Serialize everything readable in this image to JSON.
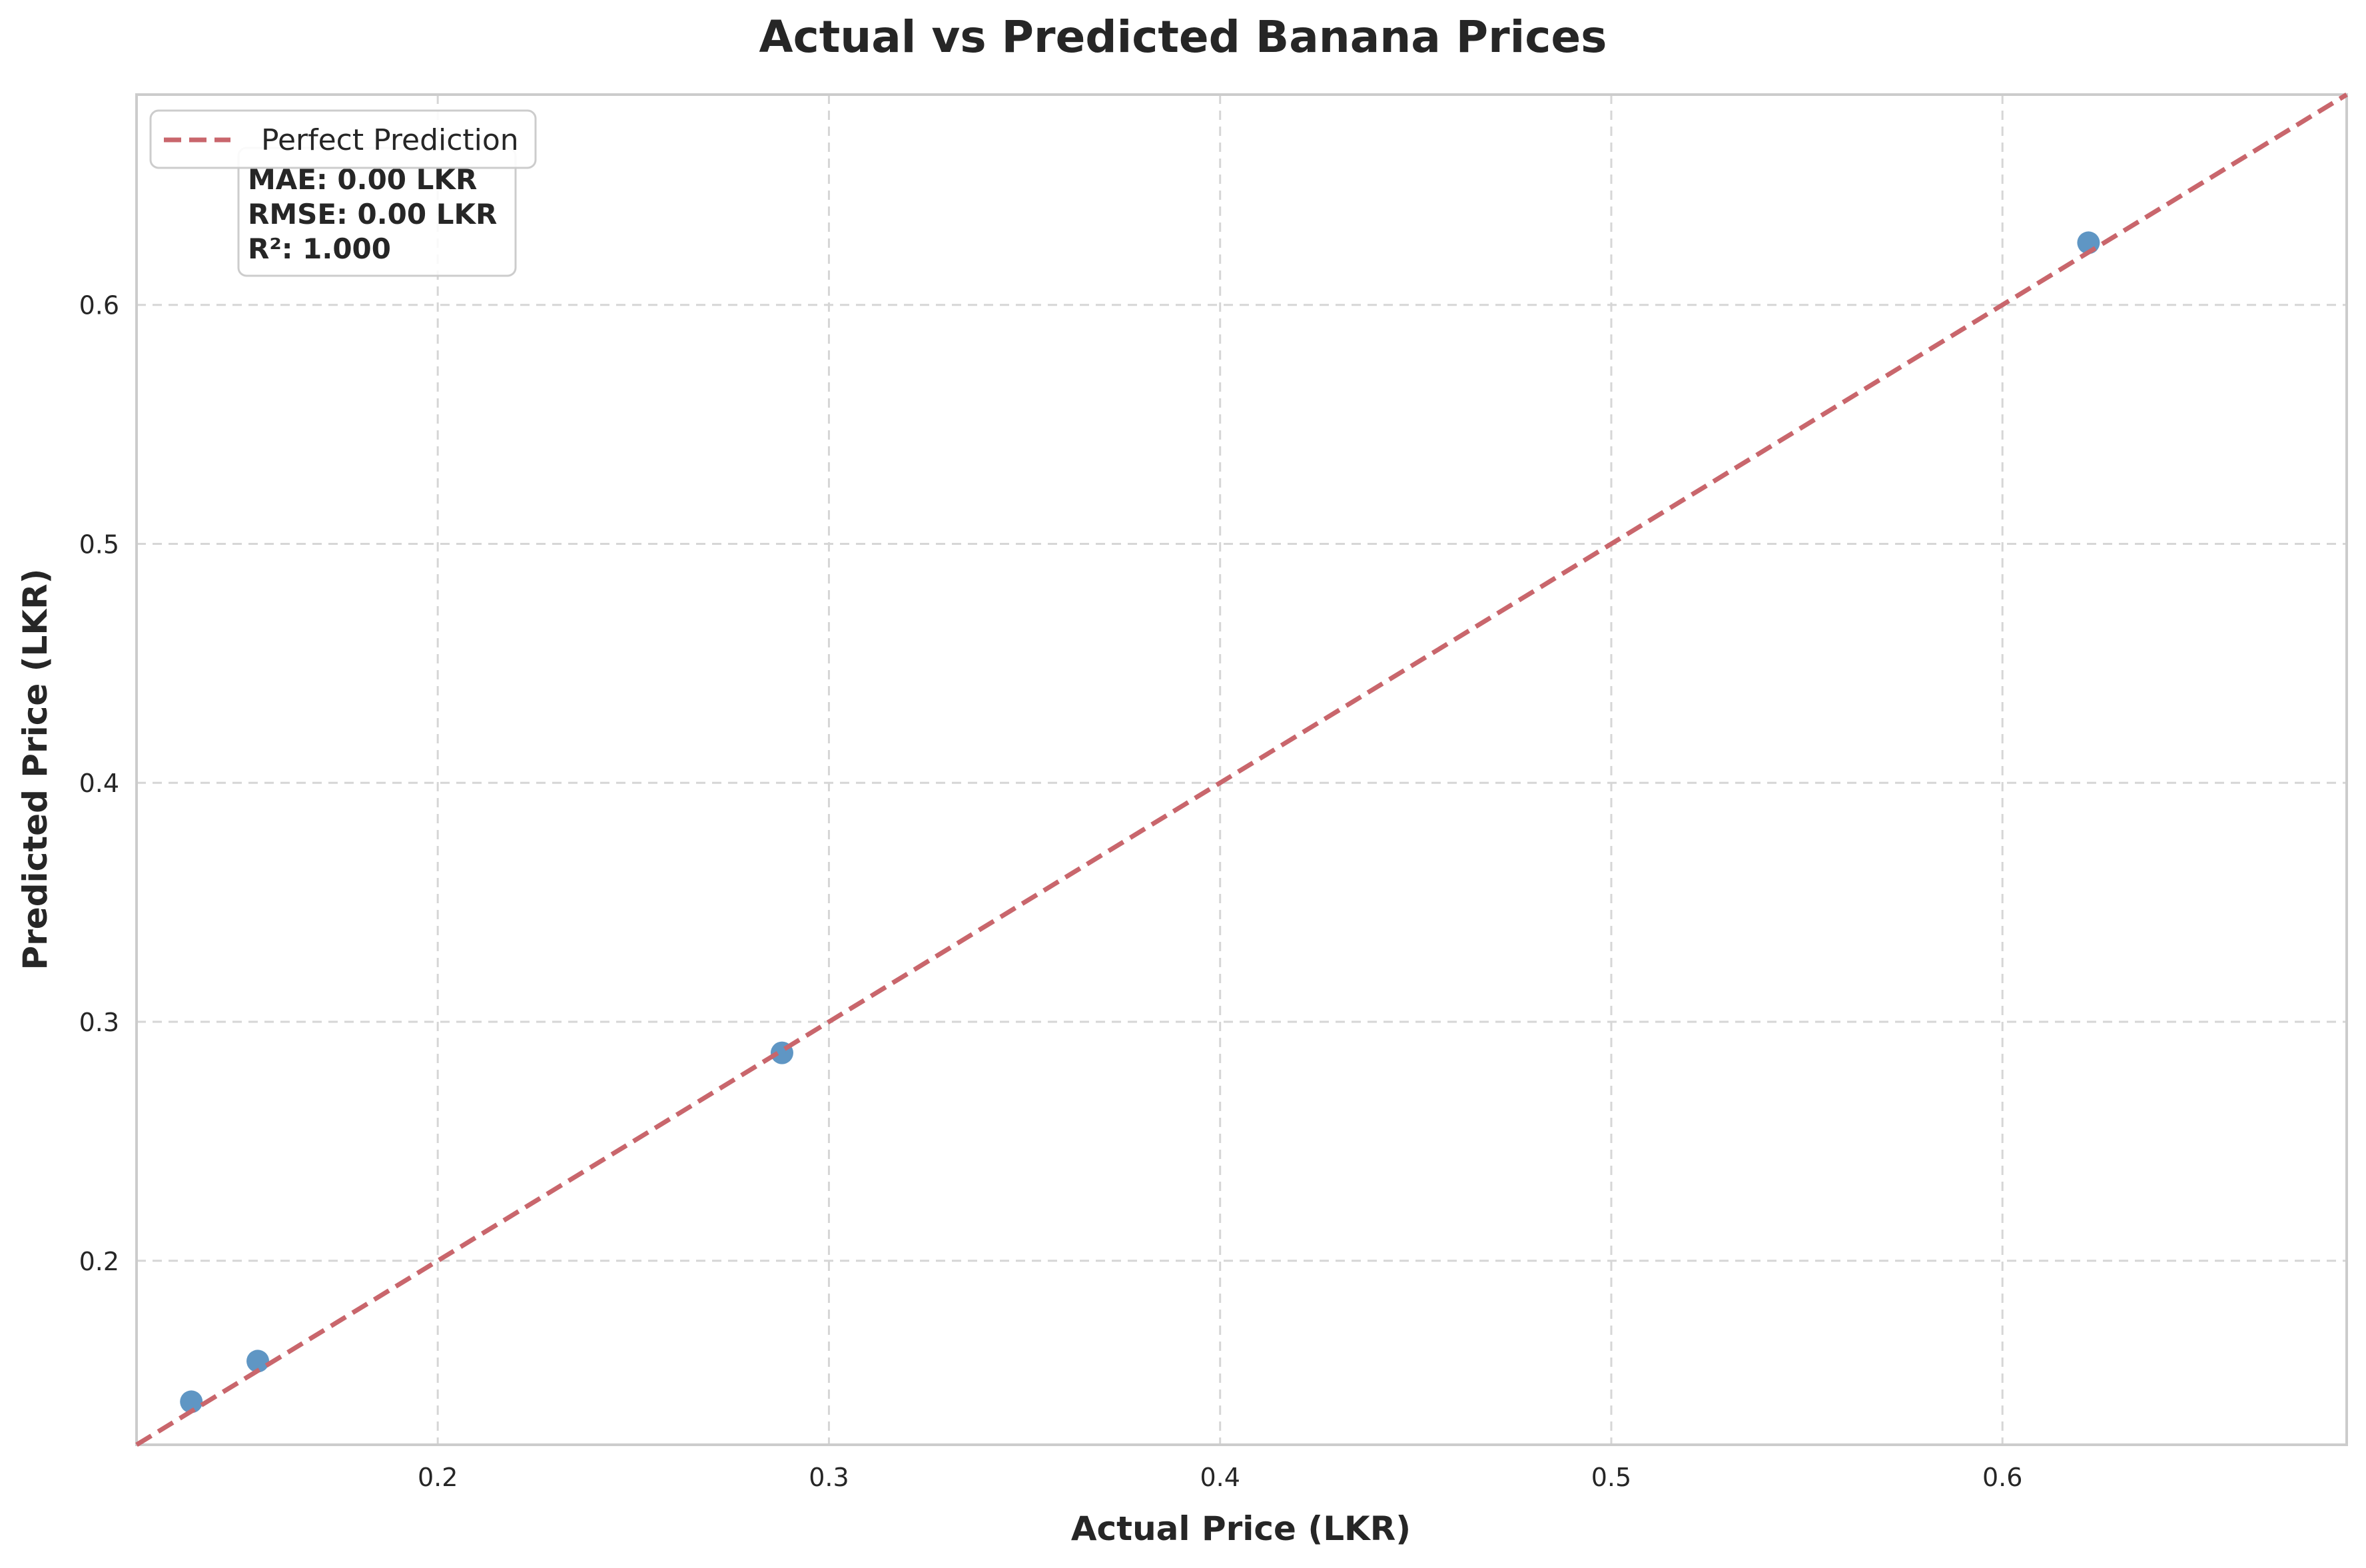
{
  "chart_data": {
    "type": "scatter",
    "title": "Actual vs Predicted Banana Prices",
    "xlabel": "Actual Price (LKR)",
    "ylabel": "Predicted Price (LKR)",
    "xlim": [
      0.123,
      0.688
    ],
    "ylim": [
      0.123,
      0.688
    ],
    "xticks": [
      0.2,
      0.3,
      0.4,
      0.5,
      0.6
    ],
    "yticks": [
      0.2,
      0.3,
      0.4,
      0.5,
      0.6
    ],
    "xtick_labels": [
      "0.2",
      "0.3",
      "0.4",
      "0.5",
      "0.6"
    ],
    "ytick_labels": [
      "0.2",
      "0.3",
      "0.4",
      "0.5",
      "0.6"
    ],
    "grid": true,
    "points": [
      {
        "x": 0.137,
        "y": 0.141
      },
      {
        "x": 0.154,
        "y": 0.158
      },
      {
        "x": 0.288,
        "y": 0.287
      },
      {
        "x": 0.622,
        "y": 0.626
      }
    ],
    "reference_line": {
      "label": "Perfect Prediction",
      "from": [
        0.123,
        0.123
      ],
      "to": [
        0.688,
        0.688
      ]
    },
    "legend": {
      "placement": "top-left",
      "entries": [
        "Perfect Prediction"
      ]
    },
    "metrics": [
      "MAE: 0.00 LKR",
      "RMSE: 0.00 LKR",
      "R²: 1.000"
    ],
    "colors": {
      "points": "#5f96c4",
      "line": "#c9666c",
      "axes": "#cccccc",
      "grid": "#d6d6d6"
    }
  }
}
